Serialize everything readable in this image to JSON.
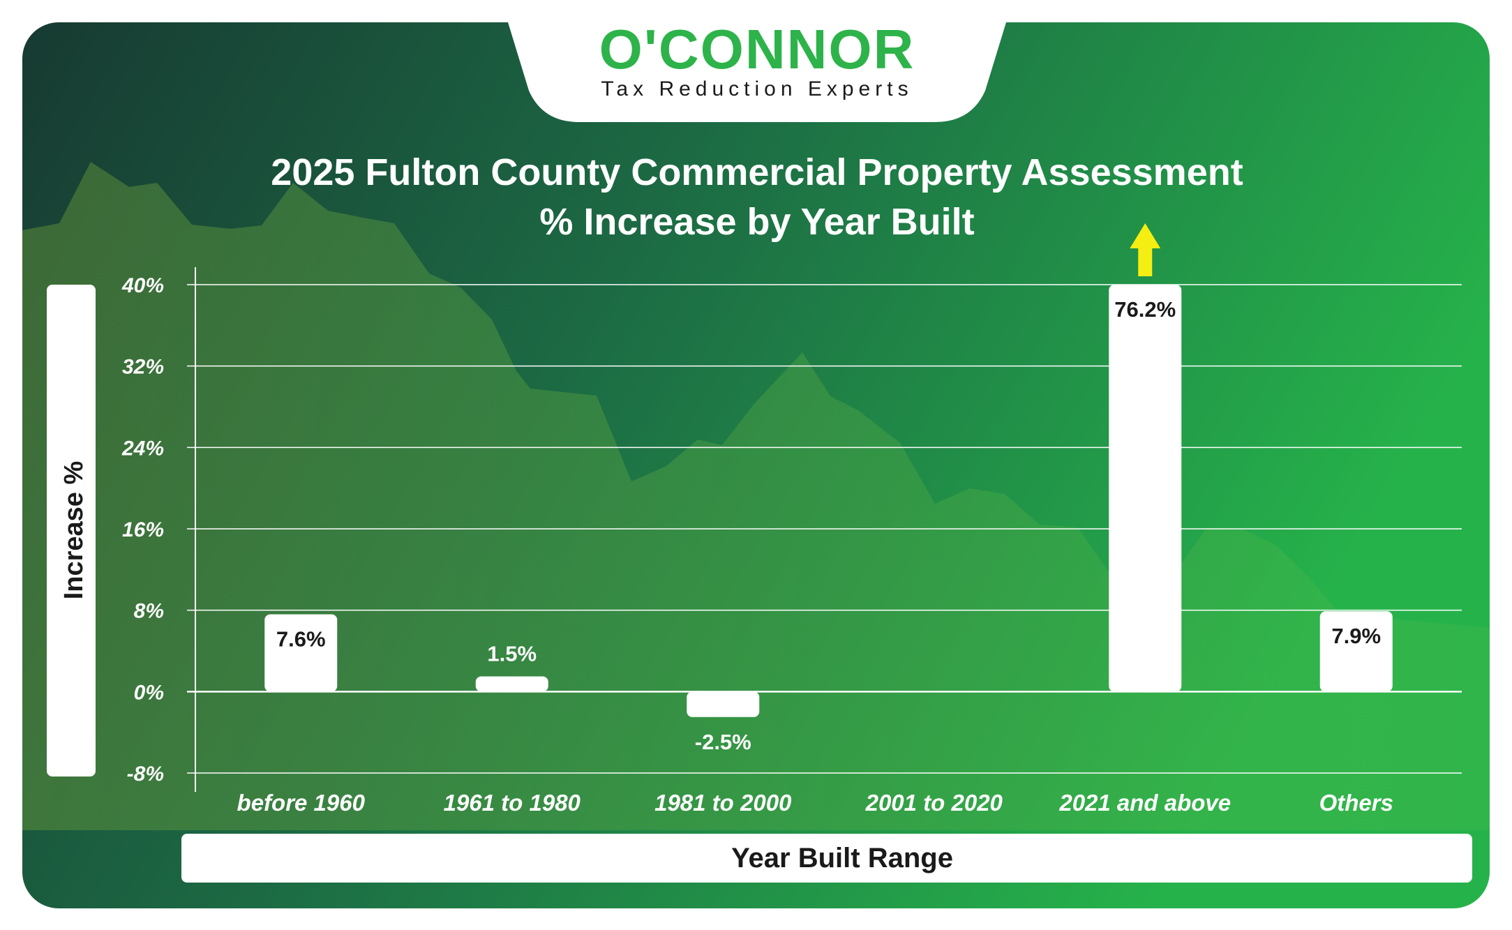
{
  "brand": {
    "name": "O'CONNOR",
    "tagline": "Tax Reduction Experts"
  },
  "colors": {
    "bg_dark": "#173a32",
    "bg_green": "#20a545",
    "bg_bright": "#26b24b",
    "logo_green": "#2db34a",
    "bar": "#ffffff",
    "arrow": "#f5ee12",
    "label_dark": "#1a1a1a",
    "text_light": "#ffffff"
  },
  "chart_data": {
    "type": "bar",
    "title": [
      "2025 Fulton County Commercial Property Assessment",
      "% Increase by Year Built"
    ],
    "xlabel": "Year Built Range",
    "ylabel": "Increase %",
    "categories": [
      "before 1960",
      "1961 to 1980",
      "1981 to 2000",
      "2001 to 2020",
      "2021 and above",
      "Others"
    ],
    "values": [
      7.6,
      1.5,
      -2.5,
      null,
      76.2,
      7.9
    ],
    "data_labels": [
      "7.6%",
      "1.5%",
      "-2.5%",
      "",
      "76.2%",
      "7.9%"
    ],
    "ylim": [
      -8,
      40
    ],
    "yticks": [
      -8,
      0,
      8,
      16,
      24,
      32,
      40
    ],
    "ytick_labels": [
      "-8%",
      "0%",
      "8%",
      "16%",
      "24%",
      "32%",
      "40%"
    ],
    "grid": true,
    "clipped_above_axis": [
      false,
      false,
      false,
      false,
      true,
      false
    ],
    "legend": "none"
  }
}
